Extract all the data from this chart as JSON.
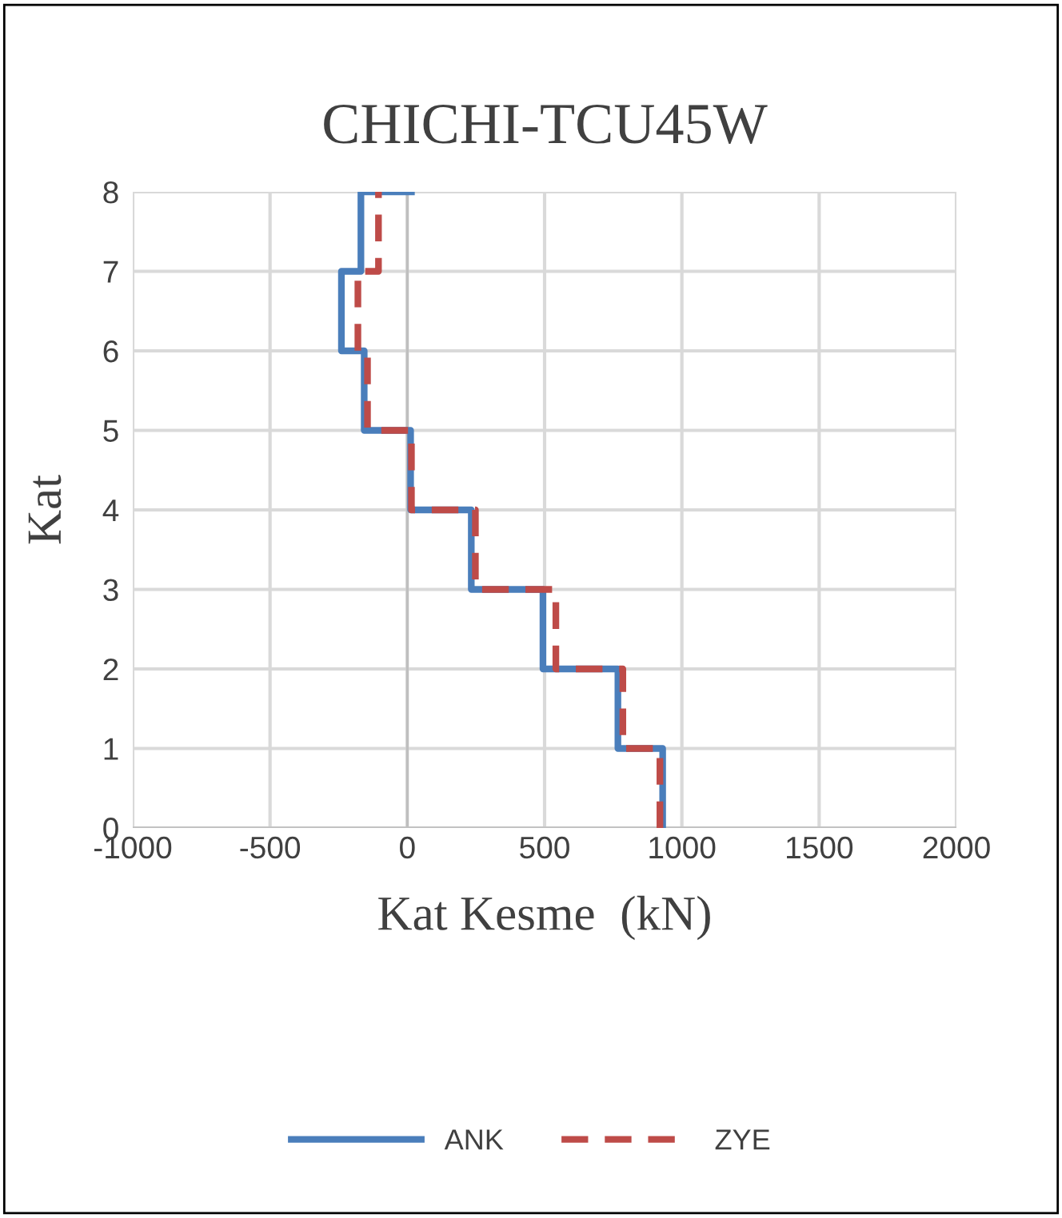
{
  "chart_data": {
    "type": "line",
    "title": "CHICHI-TCU45W",
    "xlabel": "Kat Kesme  (kN)",
    "ylabel": "Kat",
    "xlim": [
      -1000,
      2000
    ],
    "xticks": [
      -1000,
      -500,
      0,
      500,
      1000,
      1500,
      2000
    ],
    "ylim": [
      0,
      8
    ],
    "yticks": [
      0,
      1,
      2,
      3,
      4,
      5,
      6,
      7,
      8
    ],
    "grid": true,
    "legend": "bottom",
    "series": [
      {
        "name": "ANK",
        "color": "#4a7ebb",
        "line_style": "solid",
        "x": [
          930,
          930,
          767,
          767,
          494,
          494,
          233,
          233,
          12,
          12,
          -157,
          -157,
          -240,
          -240,
          -169,
          -169,
          15
        ],
        "values": [
          0,
          1,
          1,
          2,
          2,
          3,
          3,
          4,
          4,
          5,
          5,
          6,
          6,
          7,
          7,
          8,
          8
        ]
      },
      {
        "name": "ZYE",
        "color": "#be4b48",
        "line_style": "dashed",
        "x": [
          920,
          920,
          785,
          785,
          541,
          541,
          248,
          248,
          15,
          15,
          -145,
          -145,
          -180,
          -180,
          -105,
          -105
        ],
        "values": [
          0,
          1,
          1,
          2,
          2,
          3,
          3,
          4,
          4,
          5,
          5,
          6,
          6,
          7,
          7,
          8
        ]
      }
    ]
  }
}
